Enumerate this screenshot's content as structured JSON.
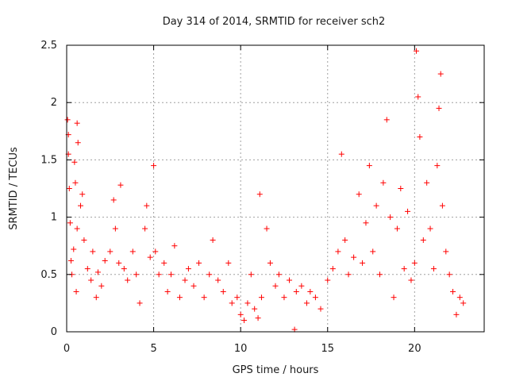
{
  "chart_data": {
    "type": "scatter",
    "title": "Day 314 of 2014, SRMTID for receiver sch2",
    "xlabel": "GPS time / hours",
    "ylabel": "SRMTID / TECUs",
    "xlim": [
      0,
      24
    ],
    "ylim": [
      0,
      2.5
    ],
    "x_ticks": [
      0,
      5,
      10,
      15,
      20
    ],
    "x_tick_labels": [
      "0",
      "5",
      "10",
      "15",
      "20"
    ],
    "y_ticks": [
      0,
      0.5,
      1,
      1.5,
      2,
      2.5
    ],
    "y_tick_labels": [
      "0",
      "0.5",
      "1",
      "1.5",
      "2",
      "2.5"
    ],
    "grid": true,
    "marker": "+",
    "series": [
      {
        "name": "SRMTID",
        "color": "#ff0000",
        "points": [
          [
            0.05,
            1.85
          ],
          [
            0.1,
            1.72
          ],
          [
            0.1,
            1.55
          ],
          [
            0.15,
            1.25
          ],
          [
            0.2,
            0.95
          ],
          [
            0.25,
            0.62
          ],
          [
            0.3,
            0.5
          ],
          [
            0.4,
            0.72
          ],
          [
            0.45,
            1.48
          ],
          [
            0.5,
            1.3
          ],
          [
            0.55,
            0.35
          ],
          [
            0.6,
            0.9
          ],
          [
            0.6,
            1.82
          ],
          [
            0.65,
            1.65
          ],
          [
            0.8,
            1.1
          ],
          [
            0.9,
            1.2
          ],
          [
            1.0,
            0.8
          ],
          [
            1.2,
            0.55
          ],
          [
            1.4,
            0.45
          ],
          [
            1.5,
            0.7
          ],
          [
            1.7,
            0.3
          ],
          [
            1.8,
            0.52
          ],
          [
            2.0,
            0.4
          ],
          [
            2.2,
            0.62
          ],
          [
            2.5,
            0.7
          ],
          [
            2.7,
            1.15
          ],
          [
            2.8,
            0.9
          ],
          [
            3.0,
            0.6
          ],
          [
            3.1,
            1.28
          ],
          [
            3.3,
            0.55
          ],
          [
            3.5,
            0.45
          ],
          [
            3.8,
            0.7
          ],
          [
            4.0,
            0.5
          ],
          [
            4.2,
            0.25
          ],
          [
            4.5,
            0.9
          ],
          [
            4.6,
            1.1
          ],
          [
            4.8,
            0.65
          ],
          [
            5.0,
            1.45
          ],
          [
            5.1,
            0.7
          ],
          [
            5.3,
            0.5
          ],
          [
            5.6,
            0.6
          ],
          [
            5.8,
            0.35
          ],
          [
            6.0,
            0.5
          ],
          [
            6.2,
            0.75
          ],
          [
            6.5,
            0.3
          ],
          [
            6.8,
            0.45
          ],
          [
            7.0,
            0.55
          ],
          [
            7.3,
            0.4
          ],
          [
            7.6,
            0.6
          ],
          [
            7.9,
            0.3
          ],
          [
            8.2,
            0.5
          ],
          [
            8.4,
            0.8
          ],
          [
            8.7,
            0.45
          ],
          [
            9.0,
            0.35
          ],
          [
            9.3,
            0.6
          ],
          [
            9.5,
            0.25
          ],
          [
            9.8,
            0.3
          ],
          [
            10.0,
            0.15
          ],
          [
            10.2,
            0.1
          ],
          [
            10.4,
            0.25
          ],
          [
            10.6,
            0.5
          ],
          [
            10.8,
            0.2
          ],
          [
            11.0,
            0.12
          ],
          [
            11.1,
            1.2
          ],
          [
            11.2,
            0.3
          ],
          [
            11.5,
            0.9
          ],
          [
            11.7,
            0.6
          ],
          [
            12.0,
            0.4
          ],
          [
            12.2,
            0.5
          ],
          [
            12.5,
            0.3
          ],
          [
            12.8,
            0.45
          ],
          [
            13.1,
            0.02
          ],
          [
            13.2,
            0.35
          ],
          [
            13.5,
            0.4
          ],
          [
            13.8,
            0.25
          ],
          [
            14.0,
            0.35
          ],
          [
            14.3,
            0.3
          ],
          [
            14.6,
            0.2
          ],
          [
            15.0,
            0.45
          ],
          [
            15.3,
            0.55
          ],
          [
            15.6,
            0.7
          ],
          [
            15.8,
            1.55
          ],
          [
            16.0,
            0.8
          ],
          [
            16.2,
            0.5
          ],
          [
            16.5,
            0.65
          ],
          [
            16.8,
            1.2
          ],
          [
            17.0,
            0.6
          ],
          [
            17.2,
            0.95
          ],
          [
            17.4,
            1.45
          ],
          [
            17.6,
            0.7
          ],
          [
            17.8,
            1.1
          ],
          [
            18.0,
            0.5
          ],
          [
            18.2,
            1.3
          ],
          [
            18.4,
            1.85
          ],
          [
            18.6,
            1.0
          ],
          [
            18.8,
            0.3
          ],
          [
            19.0,
            0.9
          ],
          [
            19.2,
            1.25
          ],
          [
            19.4,
            0.55
          ],
          [
            19.6,
            1.05
          ],
          [
            19.8,
            0.45
          ],
          [
            20.0,
            0.6
          ],
          [
            20.1,
            2.45
          ],
          [
            20.2,
            2.05
          ],
          [
            20.3,
            1.7
          ],
          [
            20.5,
            0.8
          ],
          [
            20.7,
            1.3
          ],
          [
            20.9,
            0.9
          ],
          [
            21.1,
            0.55
          ],
          [
            21.3,
            1.45
          ],
          [
            21.4,
            1.95
          ],
          [
            21.5,
            2.25
          ],
          [
            21.6,
            1.1
          ],
          [
            21.8,
            0.7
          ],
          [
            22.0,
            0.5
          ],
          [
            22.2,
            0.35
          ],
          [
            22.4,
            0.15
          ],
          [
            22.6,
            0.3
          ],
          [
            22.8,
            0.25
          ]
        ]
      }
    ]
  }
}
